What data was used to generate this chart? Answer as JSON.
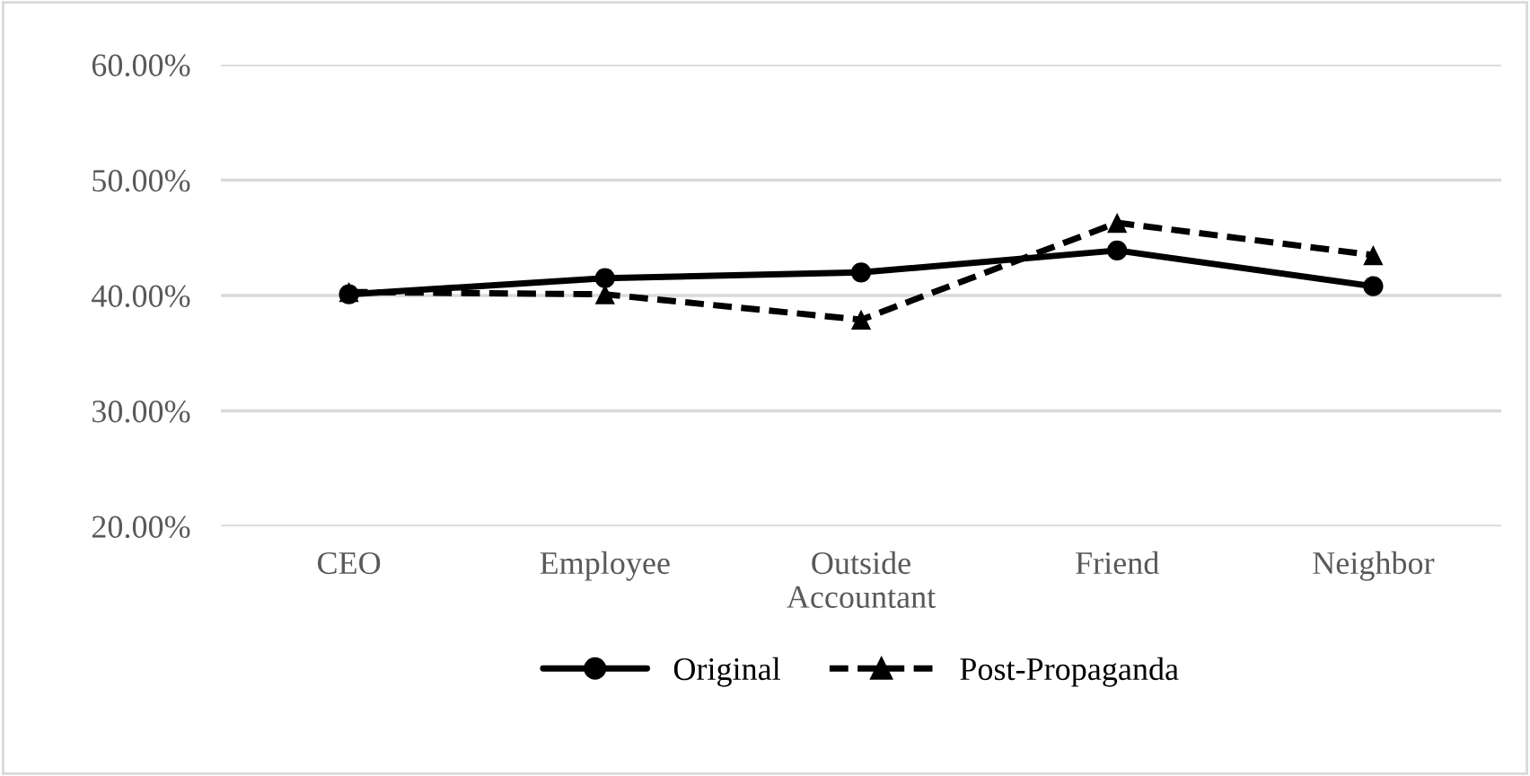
{
  "chart_data": {
    "type": "line",
    "categories": [
      "CEO",
      "Employee",
      "Outside\nAccountant",
      "Friend",
      "Neighbor"
    ],
    "series": [
      {
        "name": "Original",
        "color": "#000000",
        "values": [
          40.1,
          41.5,
          42.0,
          43.9,
          40.8
        ],
        "marker": "circle",
        "line_style": "solid"
      },
      {
        "name": "Post-Propaganda",
        "color": "#000000",
        "values": [
          40.3,
          40.1,
          37.9,
          46.3,
          43.5
        ],
        "marker": "triangle",
        "line_style": "dashed"
      }
    ],
    "ylim": [
      20,
      60
    ],
    "yticks": [
      {
        "value": 20,
        "label": "20.00%"
      },
      {
        "value": 30,
        "label": "30.00%"
      },
      {
        "value": 40,
        "label": "40.00%"
      },
      {
        "value": 50,
        "label": "50.00%"
      },
      {
        "value": 60,
        "label": "60.00%"
      }
    ],
    "grid": "y",
    "legend": "bottom"
  }
}
